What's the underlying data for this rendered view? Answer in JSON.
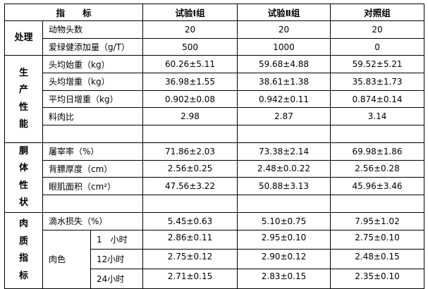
{
  "header": {
    "indicator": "指　　标",
    "group1": "试验Ⅰ组",
    "group2": "试验Ⅱ组",
    "control": "对照组"
  },
  "sections": [
    {
      "label": "处理",
      "rows": [
        {
          "name": "动物头数",
          "values": [
            "20",
            "20",
            "20"
          ]
        },
        {
          "name": "爱绿健添加量（g/T）",
          "values": [
            "500",
            "1000",
            "0"
          ]
        }
      ]
    },
    {
      "label": "生产性能",
      "rows": [
        {
          "name": "头均始重（kg）",
          "values": [
            "60.26±5.11",
            "59.68±4.88",
            "59.52±5.21"
          ]
        },
        {
          "name": "头均增重（kg）",
          "values": [
            "36.98±1.55",
            "38.61±1.38",
            "35.83±1.73"
          ]
        },
        {
          "name": "平均日增重（kg）",
          "values": [
            "0.902±0.08",
            "0.942±0.11",
            "0.874±0.14"
          ]
        },
        {
          "name": "料肉比",
          "values": [
            "2.98",
            "2.87",
            "3.14"
          ]
        }
      ]
    },
    {
      "label": "胴体性状",
      "rows": [
        {
          "name": "屠宰率（%）",
          "values": [
            "71.86±2.03",
            "73.38±2.14",
            "69.98±1.86"
          ]
        },
        {
          "name": "背膘厚度（cm）",
          "values": [
            "2.56±0.25",
            "2.48±0.0.22",
            "2.56±0.28"
          ]
        },
        {
          "name": "眼肌面积（cm²）",
          "values": [
            "47.56±3.22",
            "50.88±3.13",
            "45.96±3.46"
          ]
        }
      ]
    },
    {
      "label": "肉质指标",
      "rows": [
        {
          "name": "滴水损失（%）",
          "values": [
            "5.45±0.63",
            "5.10±0.75",
            "7.95±1.02"
          ]
        }
      ],
      "meat_color": {
        "name": "肉色",
        "rows": [
          {
            "time": "1　小时",
            "values": [
              "2.86±0.11",
              "2.95±0.10",
              "2.75±0.10"
            ]
          },
          {
            "time": "12小时",
            "values": [
              "2.75±0.12",
              "2.90±0.12",
              "2.48±0.15"
            ]
          },
          {
            "time": "24小时",
            "values": [
              "2.71±0.15",
              "2.83±0.15",
              "2.35±0.10"
            ]
          }
        ]
      }
    }
  ]
}
